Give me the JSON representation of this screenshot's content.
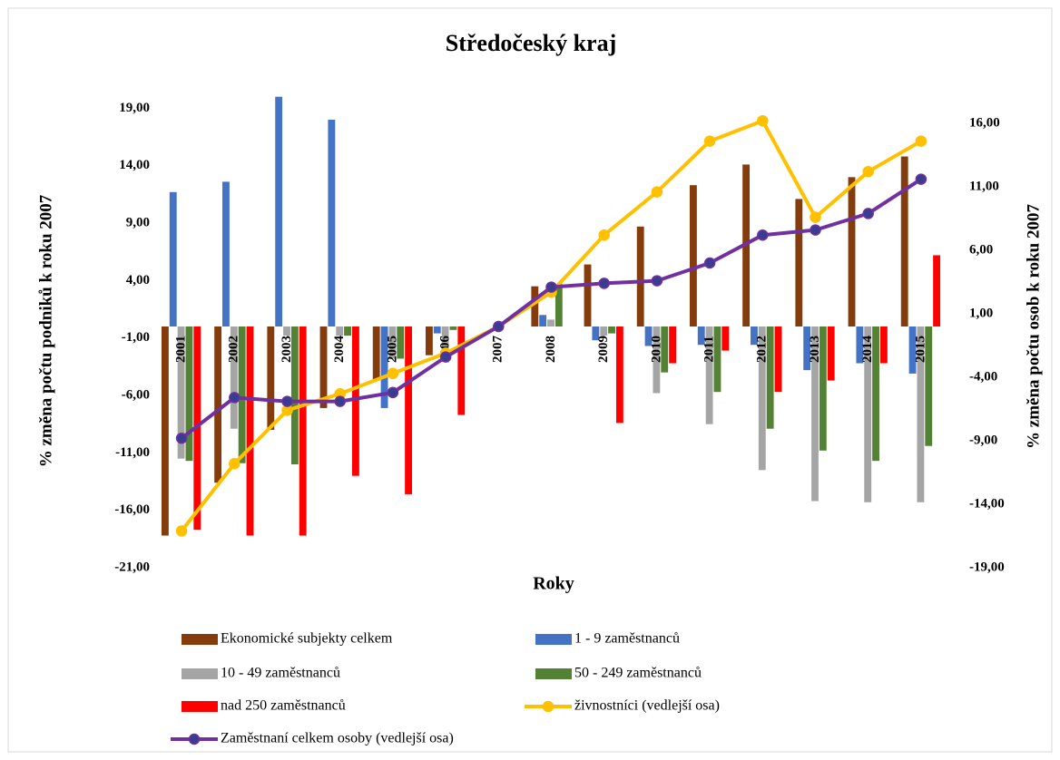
{
  "chart_data": {
    "type": "bar",
    "title": "Středočeský kraj",
    "x_label": "Roky",
    "y_label": "% změna počtu podniků k roku  2007",
    "y2_label": "% změna počtu osob k roku 2007",
    "categories": [
      "2001",
      "2002",
      "2003",
      "2004",
      "2005",
      "2006",
      "2007",
      "2008",
      "2009",
      "2010",
      "2011",
      "2012",
      "2013",
      "2014",
      "2015"
    ],
    "ylim": [
      -21,
      21
    ],
    "yticks": [
      {
        "value": 19,
        "label": "19,00"
      },
      {
        "value": 14,
        "label": "14,00"
      },
      {
        "value": 9,
        "label": "9,00"
      },
      {
        "value": 4,
        "label": "4,00"
      },
      {
        "value": -1,
        "label": "-1,00"
      },
      {
        "value": -6,
        "label": "-6,00"
      },
      {
        "value": -11,
        "label": "-11,00"
      },
      {
        "value": -16,
        "label": "-16,00"
      },
      {
        "value": -21,
        "label": "-21,00"
      }
    ],
    "y2lim": [
      -19,
      19
    ],
    "y2ticks": [
      {
        "value": 16,
        "label": "16,00"
      },
      {
        "value": 11,
        "label": "11,00"
      },
      {
        "value": 6,
        "label": "6,00"
      },
      {
        "value": 1,
        "label": "1,00"
      },
      {
        "value": -4,
        "label": "-4,00"
      },
      {
        "value": -9,
        "label": "-9,00"
      },
      {
        "value": -14,
        "label": "-14,00"
      },
      {
        "value": -19,
        "label": "-19,00"
      }
    ],
    "grid": false,
    "legend": "bottom",
    "series": [
      {
        "name": "Ekonomické subjekty celkem",
        "type": "bar",
        "color": "#843c0c",
        "values": [
          -18.2,
          -13.6,
          -9.0,
          -7.1,
          -4.7,
          -2.5,
          0,
          3.5,
          5.4,
          8.7,
          12.3,
          14.1,
          11.1,
          13.0,
          14.8
        ]
      },
      {
        "name": "1 - 9 zaměstnanců",
        "type": "bar",
        "color": "#4472c4",
        "values": [
          11.7,
          12.6,
          20.0,
          18.0,
          -7.1,
          -0.6,
          0,
          1.0,
          -1.2,
          -1.7,
          -1.6,
          -1.6,
          -3.8,
          -3.2,
          -4.1
        ]
      },
      {
        "name": "10 - 49 zaměstnanců",
        "type": "bar",
        "color": "#a5a5a5",
        "values": [
          -11.5,
          -8.9,
          -0.8,
          -0.8,
          -2.8,
          -2.4,
          0,
          0.6,
          -0.8,
          -5.8,
          -8.5,
          -12.5,
          -15.2,
          -15.3,
          -15.3
        ]
      },
      {
        "name": "50 - 249 zaměstnanců",
        "type": "bar",
        "color": "#548235",
        "values": [
          -11.7,
          -11.9,
          -12.0,
          -0.8,
          -2.8,
          -0.3,
          0,
          3.7,
          -0.6,
          -4.0,
          -5.7,
          -8.9,
          -10.8,
          -11.7,
          -10.4
        ]
      },
      {
        "name": "nad 250 zaměstnanců",
        "type": "bar",
        "color": "#ff0000",
        "values": [
          -17.7,
          -18.2,
          -18.2,
          -13.0,
          -14.6,
          -7.7,
          0,
          0,
          -8.4,
          -3.2,
          -2.1,
          -5.7,
          -4.7,
          -3.2,
          6.2
        ]
      },
      {
        "name": "živnostníci (vedlejší osa)",
        "type": "line",
        "axis": "y2",
        "color": "#ffc000",
        "marker_color": "#ffc000",
        "values": [
          -16.1,
          -10.8,
          -6.6,
          -5.3,
          -3.7,
          -2.1,
          0,
          2.7,
          7.2,
          10.6,
          14.6,
          16.2,
          8.6,
          12.2,
          14.6
        ]
      },
      {
        "name": "Zaměstnaní celkem osoby (vedlejší osa)",
        "type": "line",
        "axis": "y2",
        "color": "#7030a0",
        "marker_color": "#3a3d8f",
        "values": [
          -8.8,
          -5.6,
          -5.9,
          -5.9,
          -5.2,
          -2.4,
          0,
          3.1,
          3.4,
          3.6,
          5.0,
          7.2,
          7.6,
          8.9,
          11.6
        ]
      }
    ]
  }
}
